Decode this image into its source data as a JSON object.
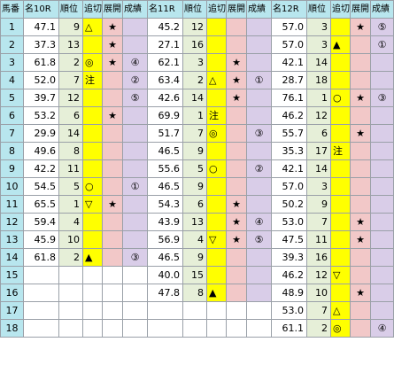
{
  "headers": [
    "馬番",
    "名10R",
    "順位",
    "追切",
    "展開",
    "成績",
    "名11R",
    "順位",
    "追切",
    "展開",
    "成績",
    "名12R",
    "順位",
    "追切",
    "展開",
    "成績"
  ],
  "rows": [
    {
      "no": "1",
      "r10": [
        "47.1",
        "9",
        "△",
        "★",
        ""
      ],
      "r11": [
        "45.2",
        "12",
        "",
        "",
        ""
      ],
      "r12": [
        "57.0",
        "3",
        "",
        "★",
        "⑤"
      ]
    },
    {
      "no": "2",
      "r10": [
        "37.3",
        "13",
        "",
        "★",
        ""
      ],
      "r11": [
        "27.1",
        "16",
        "",
        "",
        ""
      ],
      "r12": [
        "57.0",
        "3",
        "▲",
        "",
        "①"
      ]
    },
    {
      "no": "3",
      "r10": [
        "61.8",
        "2",
        "◎",
        "★",
        "④"
      ],
      "r11": [
        "62.1",
        "3",
        "",
        "★",
        ""
      ],
      "r12": [
        "42.1",
        "14",
        "",
        "",
        ""
      ]
    },
    {
      "no": "4",
      "r10": [
        "52.0",
        "7",
        "注",
        "",
        "②"
      ],
      "r11": [
        "63.4",
        "2",
        "△",
        "★",
        "①"
      ],
      "r12": [
        "28.7",
        "18",
        "",
        "",
        ""
      ]
    },
    {
      "no": "5",
      "r10": [
        "39.7",
        "12",
        "",
        "",
        "⑤"
      ],
      "r11": [
        "42.6",
        "14",
        "",
        "★",
        ""
      ],
      "r12": [
        "76.1",
        "1",
        "○",
        "★",
        "③"
      ]
    },
    {
      "no": "6",
      "r10": [
        "53.2",
        "6",
        "",
        "★",
        ""
      ],
      "r11": [
        "69.9",
        "1",
        "注",
        "",
        ""
      ],
      "r12": [
        "46.2",
        "12",
        "",
        "",
        ""
      ]
    },
    {
      "no": "7",
      "r10": [
        "29.9",
        "14",
        "",
        "",
        ""
      ],
      "r11": [
        "51.7",
        "7",
        "◎",
        "",
        "③"
      ],
      "r12": [
        "55.7",
        "6",
        "",
        "★",
        ""
      ]
    },
    {
      "no": "8",
      "r10": [
        "49.6",
        "8",
        "",
        "",
        ""
      ],
      "r11": [
        "46.5",
        "9",
        "",
        "",
        ""
      ],
      "r12": [
        "35.3",
        "17",
        "注",
        "",
        ""
      ]
    },
    {
      "no": "9",
      "r10": [
        "42.2",
        "11",
        "",
        "",
        ""
      ],
      "r11": [
        "55.6",
        "5",
        "○",
        "",
        "②"
      ],
      "r12": [
        "42.1",
        "14",
        "",
        "",
        ""
      ]
    },
    {
      "no": "10",
      "r10": [
        "54.5",
        "5",
        "○",
        "",
        "①"
      ],
      "r11": [
        "46.5",
        "9",
        "",
        "",
        ""
      ],
      "r12": [
        "57.0",
        "3",
        "",
        "",
        ""
      ]
    },
    {
      "no": "11",
      "r10": [
        "65.5",
        "1",
        "▽",
        "★",
        ""
      ],
      "r11": [
        "54.3",
        "6",
        "",
        "★",
        ""
      ],
      "r12": [
        "50.2",
        "9",
        "",
        "",
        ""
      ]
    },
    {
      "no": "12",
      "r10": [
        "59.4",
        "4",
        "",
        "",
        ""
      ],
      "r11": [
        "43.9",
        "13",
        "",
        "★",
        "④"
      ],
      "r12": [
        "53.0",
        "7",
        "",
        "★",
        ""
      ]
    },
    {
      "no": "13",
      "r10": [
        "45.9",
        "10",
        "",
        "",
        ""
      ],
      "r11": [
        "56.9",
        "4",
        "▽",
        "★",
        "⑤"
      ],
      "r12": [
        "47.5",
        "11",
        "",
        "★",
        ""
      ]
    },
    {
      "no": "14",
      "r10": [
        "61.8",
        "2",
        "▲",
        "",
        "③"
      ],
      "r11": [
        "46.5",
        "9",
        "",
        "",
        ""
      ],
      "r12": [
        "39.3",
        "16",
        "",
        "",
        ""
      ]
    },
    {
      "no": "15",
      "r10": null,
      "r11": [
        "40.0",
        "15",
        "",
        "",
        ""
      ],
      "r12": [
        "46.2",
        "12",
        "▽",
        "",
        ""
      ]
    },
    {
      "no": "16",
      "r10": null,
      "r11": [
        "47.8",
        "8",
        "▲",
        "",
        ""
      ],
      "r12": [
        "48.9",
        "10",
        "",
        "★",
        ""
      ]
    },
    {
      "no": "17",
      "r10": null,
      "r11": null,
      "r12": [
        "53.0",
        "7",
        "△",
        "",
        ""
      ]
    },
    {
      "no": "18",
      "r10": null,
      "r11": null,
      "r12": [
        "61.1",
        "2",
        "◎",
        "",
        "④"
      ]
    }
  ]
}
